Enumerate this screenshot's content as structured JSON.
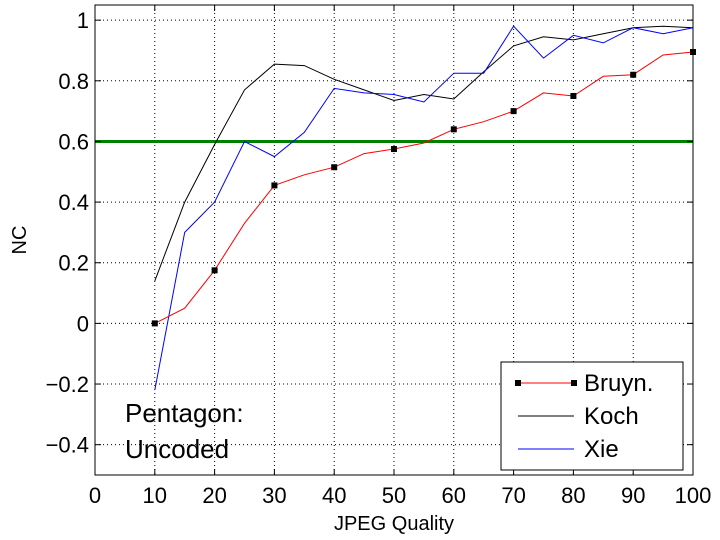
{
  "chart_data": {
    "type": "line",
    "xlabel": "JPEG Quality",
    "ylabel": "NC",
    "xlim": [
      0,
      100
    ],
    "ylim": [
      -0.5,
      1.05
    ],
    "xticks": [
      0,
      10,
      20,
      30,
      40,
      50,
      60,
      70,
      80,
      90,
      100
    ],
    "xtick_labels": [
      "0",
      "10",
      "20",
      "30",
      "40",
      "50",
      "60",
      "70",
      "80",
      "90",
      "100"
    ],
    "yticks": [
      -0.4,
      -0.2,
      0,
      0.2,
      0.4,
      0.6,
      0.8,
      1
    ],
    "ytick_labels": [
      "−0.4",
      "−0.2",
      "0",
      "0.2",
      "0.4",
      "0.6",
      "0.8",
      "1"
    ],
    "grid": true,
    "legend_position": "bottom-right",
    "annotation_lines": [
      "Pentagon:",
      "Uncoded"
    ],
    "threshold": {
      "y": 0.6,
      "color": "#008000"
    },
    "series": [
      {
        "name": "Bruyn.",
        "color": "#ff0000",
        "marker": "square",
        "marker_color": "#000000",
        "x": [
          10,
          15,
          20,
          25,
          30,
          35,
          40,
          45,
          50,
          55,
          60,
          65,
          70,
          75,
          80,
          85,
          90,
          95,
          100
        ],
        "y": [
          0.0,
          0.05,
          0.175,
          0.33,
          0.455,
          0.49,
          0.515,
          0.56,
          0.575,
          0.595,
          0.64,
          0.665,
          0.7,
          0.76,
          0.75,
          0.815,
          0.82,
          0.885,
          0.895
        ],
        "marker_x": [
          10,
          20,
          30,
          40,
          50,
          60,
          70,
          80,
          90,
          100
        ]
      },
      {
        "name": "Koch",
        "color": "#000000",
        "x": [
          10,
          15,
          20,
          25,
          30,
          35,
          40,
          45,
          50,
          55,
          60,
          65,
          70,
          75,
          80,
          85,
          90,
          95,
          100
        ],
        "y": [
          0.14,
          0.4,
          0.59,
          0.77,
          0.855,
          0.85,
          0.805,
          0.77,
          0.735,
          0.755,
          0.74,
          0.83,
          0.915,
          0.945,
          0.935,
          0.955,
          0.975,
          0.98,
          0.975
        ]
      },
      {
        "name": "Xie",
        "color": "#0000ff",
        "x": [
          10,
          15,
          20,
          25,
          30,
          35,
          40,
          45,
          50,
          55,
          60,
          65,
          70,
          75,
          80,
          85,
          90,
          95,
          100
        ],
        "y": [
          -0.22,
          0.3,
          0.4,
          0.6,
          0.55,
          0.63,
          0.775,
          0.76,
          0.755,
          0.73,
          0.825,
          0.825,
          0.98,
          0.875,
          0.95,
          0.925,
          0.975,
          0.955,
          0.975
        ]
      }
    ]
  }
}
